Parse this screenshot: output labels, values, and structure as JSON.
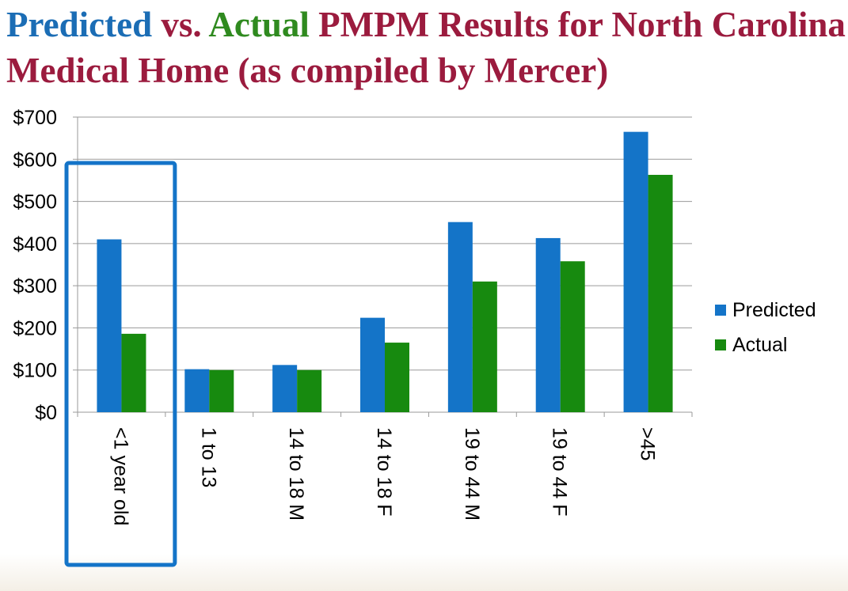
{
  "title": {
    "part_predicted": "Predicted",
    "part_vs": " vs. ",
    "part_actual": "Actual",
    "part_rest": " PMPM Results for North Carolina Medical Home (as compiled by Mercer)"
  },
  "colors": {
    "predicted": "#1474c8",
    "actual": "#178a0f",
    "highlight": "#1474c8",
    "grid": "#9a9a9a"
  },
  "chart_data": {
    "type": "bar",
    "title": "Predicted vs. Actual PMPM Results for North Carolina Medical Home (as compiled by Mercer)",
    "categories": [
      "<1 year old",
      "1 to 13",
      "14 to 18 M",
      "14 to 18 F",
      "19 to 44 M",
      "19 to 44 F",
      ">45"
    ],
    "series": [
      {
        "name": "Predicted",
        "values": [
          410,
          102,
          112,
          224,
          451,
          413,
          665
        ]
      },
      {
        "name": "Actual",
        "values": [
          186,
          100,
          100,
          165,
          310,
          358,
          563
        ]
      }
    ],
    "ylim": [
      0,
      700
    ],
    "yticks": [
      "$0",
      "$100",
      "$200",
      "$300",
      "$400",
      "$500",
      "$600",
      "$700"
    ],
    "grid": true,
    "legend": "right",
    "highlighted_category": "<1 year old"
  }
}
